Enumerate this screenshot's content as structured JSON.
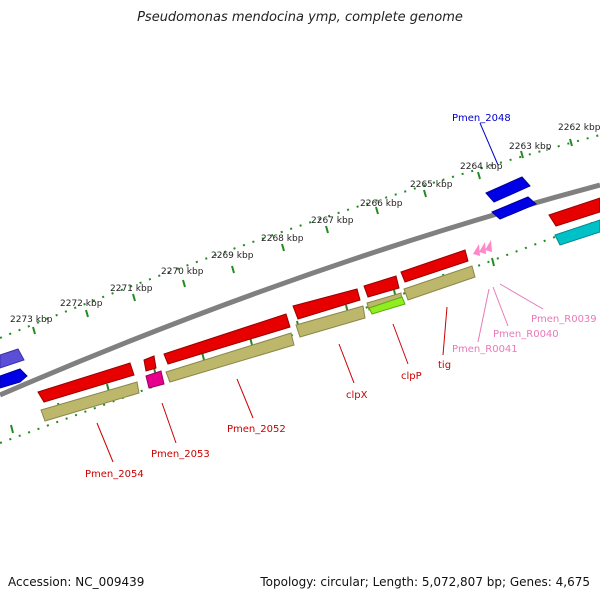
{
  "header": {
    "title": "Pseudomonas mendocina ymp, complete genome"
  },
  "footer": {
    "accession": "Accession: NC_009439",
    "summary": "Topology: circular; Length: 5,072,807 bp; Genes: 4,675"
  },
  "scale": [
    "2262 kbp",
    "2263 kbp",
    "2264 kbp",
    "2265 kbp",
    "2266 kbp",
    "2267 kbp",
    "2268 kbp",
    "2269 kbp",
    "2270 kbp",
    "2271 kbp",
    "2272 kbp",
    "2273 kbp"
  ],
  "colors": {
    "gene_red": "#e60000",
    "cds_olive": "#bdb76b",
    "blue_gene": "#0000e6",
    "cyan_gene": "#00c0c8",
    "magenta_gene": "#e6008c",
    "lime_gene": "#90ee20",
    "pink_rna": "#ff88c8",
    "backbone": "#808080",
    "tick_green": "#228b22",
    "label_red": "#cc0000",
    "label_blue": "#0000cc",
    "label_pink": "#e879b8"
  },
  "gene_labels": {
    "pmen2048": "Pmen_2048",
    "pmen2054": "Pmen_2054",
    "pmen2053": "Pmen_2053",
    "pmen2052": "Pmen_2052",
    "clpX": "clpX",
    "clpP": "clpP",
    "tig": "tig",
    "pmenR0041": "Pmen_R0041",
    "pmenR0040": "Pmen_R0040",
    "pmenR0039": "Pmen_R0039"
  }
}
